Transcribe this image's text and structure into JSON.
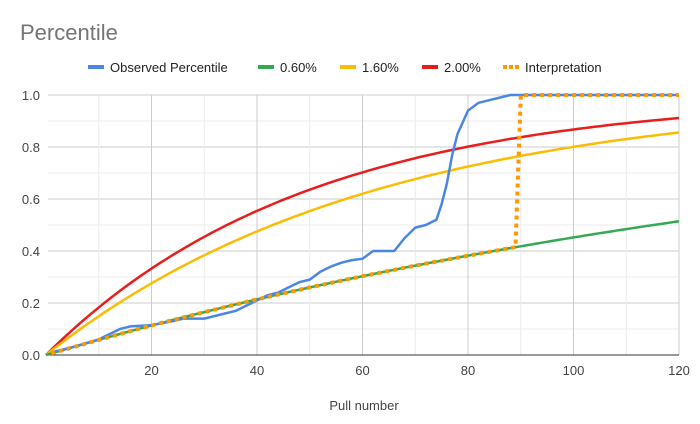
{
  "chart_data": {
    "type": "line",
    "title": "Percentile",
    "xlabel": "Pull number",
    "ylabel": "",
    "xlim": [
      0,
      120
    ],
    "ylim": [
      0,
      1
    ],
    "xticks": [
      "20",
      "40",
      "60",
      "80",
      "100",
      "120"
    ],
    "yticks": [
      "0.0",
      "0.2",
      "0.4",
      "0.6",
      "0.8",
      "1.0"
    ],
    "grid": true,
    "legend_position": "top",
    "series": [
      {
        "name": "Observed Percentile",
        "color": "#4a86e8",
        "style": "solid",
        "x": [
          1,
          5,
          10,
          12,
          14,
          16,
          20,
          24,
          26,
          30,
          32,
          34,
          36,
          38,
          40,
          42,
          44,
          46,
          48,
          50,
          52,
          54,
          56,
          58,
          60,
          62,
          66,
          68,
          70,
          72,
          74,
          75,
          76,
          77,
          78,
          80,
          82,
          84,
          86,
          88,
          120
        ],
        "y": [
          0.01,
          0.03,
          0.06,
          0.08,
          0.1,
          0.11,
          0.115,
          0.13,
          0.14,
          0.14,
          0.15,
          0.16,
          0.17,
          0.19,
          0.21,
          0.23,
          0.24,
          0.26,
          0.28,
          0.29,
          0.32,
          0.34,
          0.355,
          0.365,
          0.37,
          0.4,
          0.4,
          0.45,
          0.49,
          0.5,
          0.52,
          0.58,
          0.66,
          0.77,
          0.85,
          0.94,
          0.97,
          0.98,
          0.99,
          1.0,
          1.0
        ]
      },
      {
        "name": "0.60%",
        "color": "#34a853",
        "style": "solid",
        "rate": 0.006
      },
      {
        "name": "1.60%",
        "color": "#fbbc04",
        "style": "solid",
        "rate": 0.016
      },
      {
        "name": "2.00%",
        "color": "#ea1d1d",
        "style": "solid",
        "rate": 0.02
      },
      {
        "name": "Interpretation",
        "color": "#ff9900",
        "style": "dotted",
        "x": [
          1,
          10,
          20,
          30,
          40,
          50,
          60,
          70,
          80,
          89,
          90,
          120
        ],
        "y": [
          0.006,
          0.058,
          0.114,
          0.165,
          0.214,
          0.26,
          0.303,
          0.344,
          0.382,
          0.415,
          1.0,
          1.0
        ]
      }
    ]
  }
}
